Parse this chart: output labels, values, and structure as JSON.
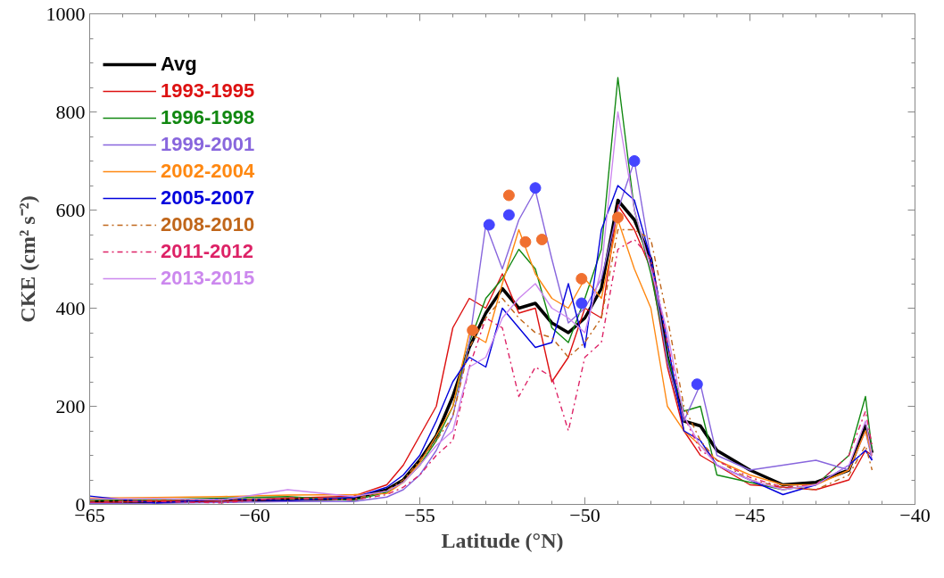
{
  "chart_data": {
    "type": "line",
    "xlabel": "Latitude (°N)",
    "ylabel": "CKE (cm² s⁻²)",
    "x": [
      -65,
      -63,
      -61,
      -59,
      -57,
      -56,
      -55.5,
      -55,
      -54.5,
      -54,
      -53.5,
      -53,
      -52.5,
      -52,
      -51.5,
      -51,
      -50.5,
      -50,
      -49.5,
      -49,
      -48.5,
      -48,
      -47.5,
      -47,
      -46.5,
      -46,
      -45,
      -44,
      -43,
      -42,
      -41.5,
      -41.3
    ],
    "xlim": [
      -65,
      -40
    ],
    "ylim": [
      0,
      1000
    ],
    "xticks": [
      -65,
      {
        "value": -64,
        "label": null
      },
      {
        "value": -63,
        "label": null
      },
      {
        "value": -62,
        "label": null
      },
      {
        "value": -61,
        "label": null
      },
      -60,
      {
        "value": -59,
        "label": null
      },
      {
        "value": -58,
        "label": null
      },
      {
        "value": -57,
        "label": null
      },
      {
        "value": -56,
        "label": null
      },
      -55,
      {
        "value": -54,
        "label": null
      },
      {
        "value": -53,
        "label": null
      },
      {
        "value": -52,
        "label": null
      },
      {
        "value": -51,
        "label": null
      },
      -50,
      {
        "value": -49,
        "label": null
      },
      {
        "value": -48,
        "label": null
      },
      {
        "value": -47,
        "label": null
      },
      {
        "value": -46,
        "label": null
      },
      -45,
      {
        "value": -44,
        "label": null
      },
      {
        "value": -43,
        "label": null
      },
      {
        "value": -42,
        "label": null
      },
      {
        "value": -41,
        "label": null
      },
      -40
    ],
    "yticks": [
      0,
      {
        "value": 50,
        "label": null
      },
      {
        "value": 100,
        "label": null
      },
      {
        "value": 150,
        "label": null
      },
      200,
      {
        "value": 250,
        "label": null
      },
      {
        "value": 300,
        "label": null
      },
      {
        "value": 350,
        "label": null
      },
      400,
      {
        "value": 450,
        "label": null
      },
      {
        "value": 500,
        "label": null
      },
      {
        "value": 550,
        "label": null
      },
      600,
      {
        "value": 650,
        "label": null
      },
      {
        "value": 700,
        "label": null
      },
      {
        "value": 750,
        "label": null
      },
      800,
      {
        "value": 850,
        "label": null
      },
      {
        "value": 900,
        "label": null
      },
      {
        "value": 950,
        "label": null
      },
      1000
    ],
    "grid": false,
    "legend": "top left",
    "marker": "none",
    "series": [
      {
        "name": "Avg",
        "color": "#000000",
        "line_style": "solid",
        "values": [
          5,
          5,
          8,
          10,
          12,
          30,
          50,
          90,
          140,
          220,
          320,
          390,
          440,
          400,
          410,
          370,
          350,
          380,
          440,
          620,
          580,
          500,
          300,
          170,
          160,
          110,
          70,
          40,
          45,
          70,
          160,
          105
        ]
      },
      {
        "name": "1993-1995",
        "color": "#dd1111",
        "line_style": "solid",
        "values": [
          3,
          7,
          6,
          13,
          17,
          40,
          80,
          140,
          200,
          360,
          420,
          400,
          470,
          390,
          400,
          250,
          300,
          400,
          380,
          610,
          560,
          480,
          280,
          150,
          100,
          80,
          40,
          35,
          30,
          50,
          110,
          100
        ]
      },
      {
        "name": "1996-1998",
        "color": "#118811",
        "line_style": "solid",
        "values": [
          9,
          10,
          13,
          16,
          8,
          25,
          45,
          80,
          130,
          200,
          330,
          420,
          460,
          520,
          480,
          360,
          330,
          420,
          520,
          870,
          600,
          470,
          300,
          190,
          200,
          60,
          45,
          30,
          40,
          100,
          220,
          110
        ]
      },
      {
        "name": "1999-2001",
        "color": "#8866dd",
        "line_style": "solid",
        "values": [
          2,
          2,
          4,
          6,
          6,
          15,
          30,
          60,
          110,
          180,
          330,
          570,
          480,
          580,
          640,
          500,
          370,
          400,
          460,
          600,
          700,
          500,
          290,
          170,
          245,
          100,
          70,
          80,
          90,
          70,
          150,
          90
        ]
      },
      {
        "name": "2002-2004",
        "color": "#ff8811",
        "line_style": "solid",
        "values": [
          13,
          14,
          16,
          19,
          20,
          22,
          45,
          85,
          140,
          200,
          350,
          330,
          450,
          560,
          470,
          420,
          400,
          460,
          420,
          580,
          480,
          400,
          200,
          150,
          120,
          90,
          60,
          40,
          40,
          70,
          150,
          100
        ]
      },
      {
        "name": "2005-2007",
        "color": "#0000dd",
        "line_style": "solid",
        "values": [
          17,
          3,
          11,
          8,
          14,
          35,
          60,
          100,
          170,
          250,
          300,
          280,
          400,
          360,
          320,
          330,
          450,
          320,
          560,
          650,
          620,
          500,
          330,
          150,
          130,
          80,
          50,
          20,
          40,
          80,
          110,
          90
        ]
      },
      {
        "name": "2008-2010",
        "color": "#c0661a",
        "line_style": "dashdot",
        "values": [
          7,
          9,
          10,
          11,
          11,
          28,
          50,
          90,
          130,
          180,
          320,
          380,
          420,
          380,
          350,
          340,
          300,
          330,
          380,
          560,
          560,
          540,
          380,
          200,
          130,
          90,
          50,
          35,
          30,
          60,
          120,
          70
        ]
      },
      {
        "name": "2011-2012",
        "color": "#dd2266",
        "line_style": "dashdot",
        "values": [
          4,
          6,
          3,
          14,
          9,
          20,
          35,
          60,
          100,
          130,
          280,
          380,
          360,
          220,
          280,
          260,
          150,
          300,
          330,
          520,
          540,
          500,
          330,
          180,
          110,
          90,
          55,
          35,
          40,
          100,
          190,
          120
        ]
      },
      {
        "name": "2013-2015",
        "color": "#cc88ee",
        "line_style": "solid",
        "values": [
          11,
          12,
          9,
          30,
          16,
          27,
          45,
          80,
          120,
          150,
          280,
          300,
          380,
          420,
          450,
          400,
          380,
          350,
          480,
          800,
          600,
          480,
          350,
          180,
          120,
          80,
          50,
          30,
          40,
          80,
          170,
          100
        ]
      },
      {
        "type": "scatter",
        "marker": "circle",
        "color": "#4444ff",
        "x": [
          -52.9,
          -52.3,
          -51.5,
          -50.1,
          -48.5,
          -46.6
        ],
        "values": [
          570,
          590,
          645,
          410,
          700,
          245
        ]
      },
      {
        "type": "scatter",
        "marker": "circle",
        "color": "#f07030",
        "x": [
          -53.4,
          -52.3,
          -51.8,
          -51.3,
          -50.1,
          -49
        ],
        "values": [
          355,
          630,
          535,
          540,
          460,
          585
        ]
      }
    ]
  }
}
